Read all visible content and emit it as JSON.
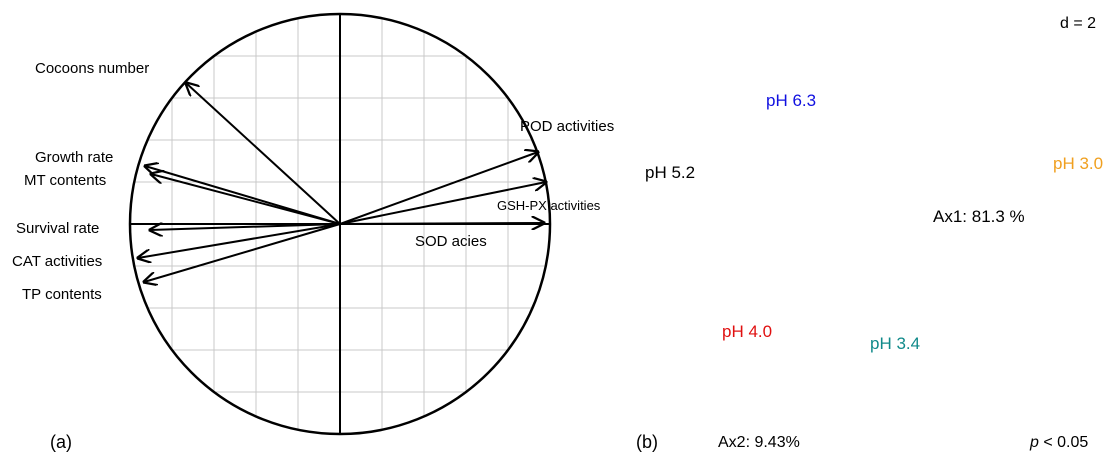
{
  "panel_a": {
    "label": "(a)",
    "variables": [
      "Cocoons number",
      "POD activities",
      "Growth rate",
      "MT contents",
      "GSH-PX activities",
      "Survival rate",
      "SOD acies",
      "CAT activities",
      "TP contents"
    ]
  },
  "panel_b": {
    "label": "(b)",
    "scale": "d = 2",
    "groups": [
      {
        "name": "pH 6.3",
        "color": "#1010e0"
      },
      {
        "name": "pH 5.2",
        "color": "#000000"
      },
      {
        "name": "pH 3.0",
        "color": "#f0a020"
      },
      {
        "name": "pH 4.0",
        "color": "#e01010"
      },
      {
        "name": "pH 3.4",
        "color": "#108a8a"
      }
    ],
    "axis1": "Ax1: 81.3 %",
    "axis2": "Ax2: 9.43%",
    "significance": {
      "symbol": "p",
      "text": "< 0.05"
    }
  }
}
